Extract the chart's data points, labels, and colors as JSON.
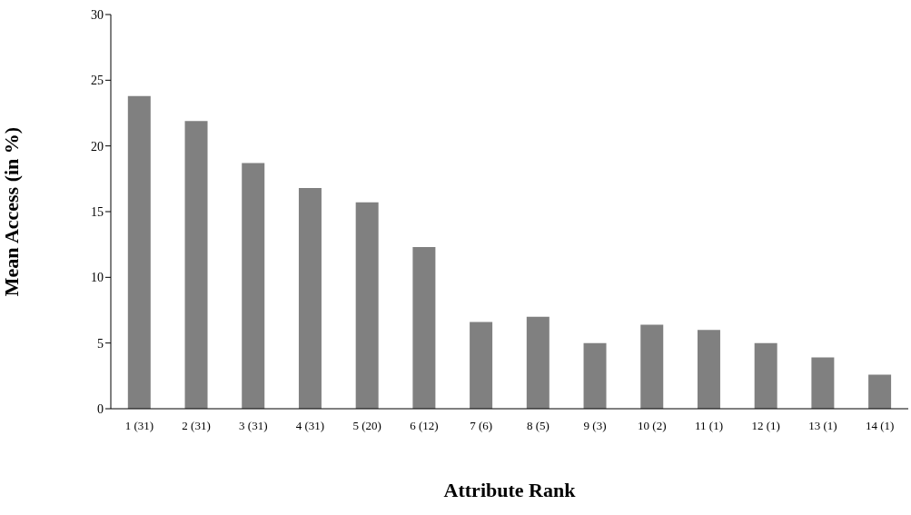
{
  "chart_data": {
    "type": "bar",
    "xlabel": "Attribute Rank",
    "ylabel": "Mean Access (in %)",
    "categories": [
      "1 (31)",
      "2 (31)",
      "3 (31)",
      "4 (31)",
      "5 (20)",
      "6 (12)",
      "7  (6)",
      "8  (5)",
      "9  (3)",
      "10 (2)",
      "11 (1)",
      "12 (1)",
      "13 (1)",
      "14 (1)"
    ],
    "values": [
      23.8,
      21.9,
      18.7,
      16.8,
      15.7,
      12.3,
      6.6,
      7.0,
      5.0,
      6.4,
      6.0,
      5.0,
      3.9,
      2.6
    ],
    "color": "#808080",
    "ylim": [
      0,
      30
    ],
    "yticks": [
      0,
      5,
      10,
      15,
      20,
      25,
      30
    ],
    "grid": false,
    "legend": false
  }
}
